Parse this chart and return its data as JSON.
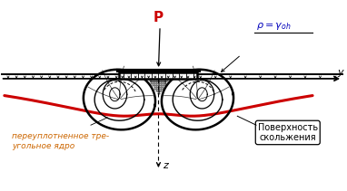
{
  "bg_color": "#ffffff",
  "slide_surface_color": "#cc0000",
  "slide_surface_lw": 2.2,
  "label_P": "P",
  "label_y": "y",
  "label_z": "z",
  "label_left": "переуплотненное тре-\nугольное ядро",
  "label_right": "Поверхность\nскольжения",
  "figsize": [
    3.82,
    2.11
  ],
  "dpi": 100,
  "xlim": [
    -2.1,
    2.5
  ],
  "ylim": [
    -1.3,
    0.85
  ]
}
